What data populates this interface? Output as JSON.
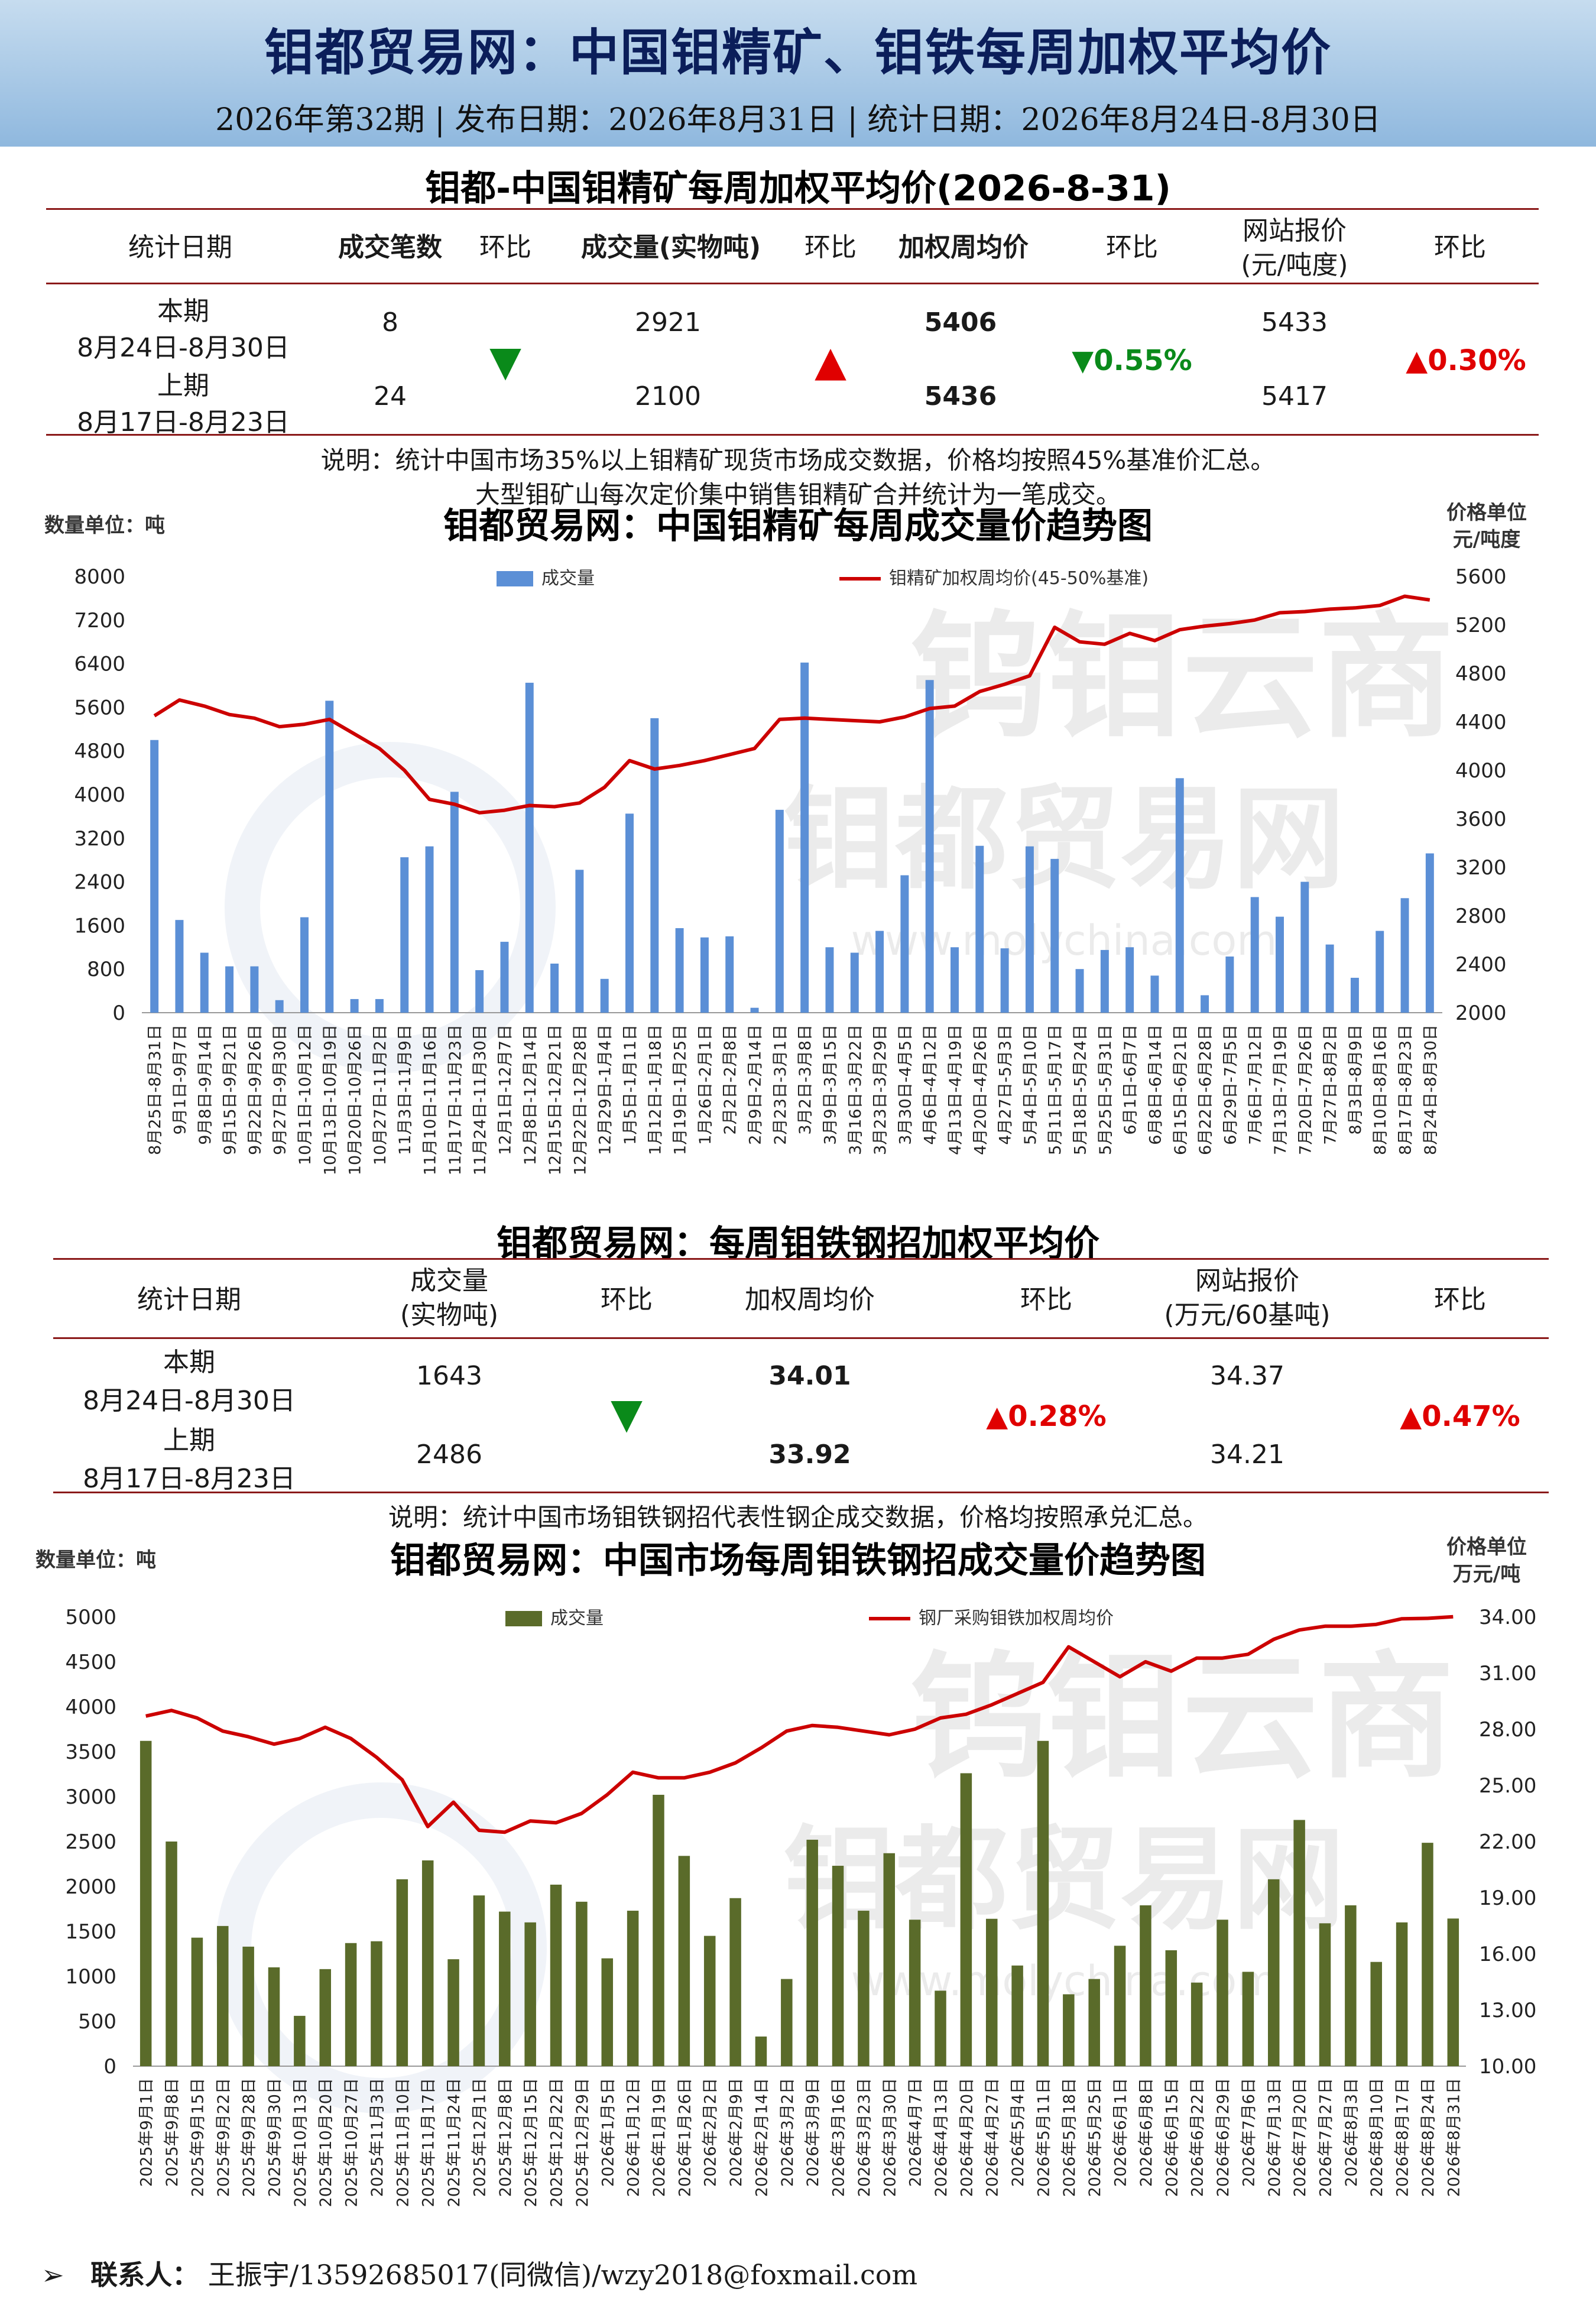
{
  "header": {
    "title": "钼都贸易网：中国钼精矿、钼铁每周加权平均价",
    "subtitle": "2026年第32期 | 发布日期：2026年8月31日 | 统计日期：2026年8月24日-8月30日"
  },
  "table1": {
    "title": "钼都-中国钼精矿每周加权平均价(2026-8-31)",
    "headers": [
      "统计日期",
      "成交笔数",
      "环比",
      "成交量(实物吨)",
      "环比",
      "加权周均价",
      "环比",
      "网站报价\n(元/吨度)",
      "环比"
    ],
    "rows": [
      {
        "label": "本期",
        "date": "8月24日-8月30日",
        "count": "8",
        "volume": "2921",
        "price": "5406",
        "quote": "5433"
      },
      {
        "label": "上期",
        "date": "8月17日-8月23日",
        "count": "24",
        "volume": "2100",
        "price": "5436",
        "quote": "5417"
      }
    ],
    "count_change": "▼",
    "volume_change": "▲",
    "price_change": "▼0.55%",
    "quote_change": "▲0.30%",
    "note1": "说明：统计中国市场35%以上钼精矿现货市场成交数据，价格均按照45%基准价汇总。",
    "note2": "大型钼矿山每次定价集中销售钼精矿合并统计为一笔成交。"
  },
  "table2": {
    "title": "钼都贸易网：每周钼铁钢招加权平均价",
    "headers": [
      "统计日期",
      "成交量\n(实物吨)",
      "环比",
      "加权周均价",
      "环比",
      "网站报价\n(万元/60基吨)",
      "环比"
    ],
    "rows": [
      {
        "label": "本期",
        "date": "8月24日-8月30日",
        "volume": "1643",
        "price": "34.01",
        "quote": "34.37"
      },
      {
        "label": "上期",
        "date": "8月17日-8月23日",
        "volume": "2486",
        "price": "33.92",
        "quote": "34.21"
      }
    ],
    "volume_change": "▼",
    "price_change": "▲0.28%",
    "quote_change": "▲0.47%",
    "note": "说明：统计中国市场钼铁钢招代表性钢企成交数据，价格均按照承兑汇总。"
  },
  "watermark": {
    "line1": "钨钼云商",
    "line2": "钼都贸易网",
    "line3": "www.molychina.com"
  },
  "chart_data": [
    {
      "type": "bar",
      "title": "钼都贸易网：中国钼精矿每周成交量价趋势图",
      "left_unit": "数量单位：吨",
      "right_unit_1": "价格单位",
      "right_unit_2": "元/吨度",
      "ylim": [
        0,
        8000
      ],
      "y2lim": [
        2000,
        5600
      ],
      "yticks": [
        0,
        800,
        1600,
        2400,
        3200,
        4000,
        4800,
        5600,
        6400,
        7200,
        8000
      ],
      "y2ticks": [
        2000,
        2400,
        2800,
        3200,
        3600,
        4000,
        4400,
        4800,
        5200,
        5600
      ],
      "legend": {
        "bar": "成交量",
        "line": "钼精矿加权周均价(45-50%基准)"
      },
      "categories": [
        "8月25日-8月31日",
        "9月1日-9月7日",
        "9月8日-9月14日",
        "9月15日-9月21日",
        "9月22日-9月26日",
        "9月27日-9月30日",
        "10月1日-10月12日",
        "10月13日-10月19日",
        "10月20日-10月26日",
        "10月27日-11月2日",
        "11月3日-11月9日",
        "11月10日-11月16日",
        "11月17日-11月23日",
        "11月24日-11月30日",
        "12月1日-12月7日",
        "12月8日-12月14日",
        "12月15日-12月21日",
        "12月22日-12月28日",
        "12月29日-1月4日",
        "1月5日-1月11日",
        "1月12日-1月18日",
        "1月19日-1月25日",
        "1月26日-2月1日",
        "2月2日-2月8日",
        "2月9日-2月14日",
        "2月23日-3月1日",
        "3月2日-3月8日",
        "3月9日-3月15日",
        "3月16日-3月22日",
        "3月23日-3月29日",
        "3月30日-4月5日",
        "4月6日-4月12日",
        "4月13日-4月19日",
        "4月20日-4月26日",
        "4月27日-5月3日",
        "5月4日-5月10日",
        "5月11日-5月17日",
        "5月18日-5月24日",
        "5月25日-5月31日",
        "6月1日-6月7日",
        "6月8日-6月14日",
        "6月15日-6月21日",
        "6月22日-6月28日",
        "6月29日-7月5日",
        "7月6日-7月12日",
        "7月13日-7月19日",
        "7月20日-7月26日",
        "7月27日-8月2日",
        "8月3日-8月9日",
        "8月10日-8月16日",
        "8月17日-8月23日",
        "8月24日-8月30日"
      ],
      "series": [
        {
          "name": "成交量",
          "kind": "bar",
          "color": "#5b8fd6",
          "values": [
            5000,
            1700,
            1100,
            850,
            850,
            230,
            1750,
            5720,
            250,
            250,
            2850,
            3050,
            4050,
            780,
            1300,
            6050,
            900,
            2620,
            620,
            3650,
            5400,
            1550,
            1380,
            1400,
            90,
            3720,
            6420,
            1200,
            1100,
            1500,
            2520,
            6100,
            1200,
            3060,
            1180,
            3050,
            2820,
            800,
            1150,
            1200,
            680,
            4300,
            320,
            1030,
            2120,
            1760,
            2400,
            1250,
            640,
            1500,
            2100,
            2921
          ]
        },
        {
          "name": "钼精矿加权周均价(45-50%基准)",
          "kind": "line",
          "color": "#cc0000",
          "values": [
            4450,
            4580,
            4530,
            4460,
            4430,
            4360,
            4380,
            4420,
            4300,
            4180,
            4000,
            3760,
            3720,
            3650,
            3670,
            3710,
            3700,
            3730,
            3860,
            4080,
            4010,
            4040,
            4080,
            4130,
            4180,
            4420,
            4430,
            4420,
            4410,
            4400,
            4440,
            4510,
            4530,
            4650,
            4710,
            4780,
            5180,
            5060,
            5040,
            5130,
            5070,
            5160,
            5190,
            5210,
            5240,
            5300,
            5310,
            5330,
            5340,
            5360,
            5436,
            5406
          ]
        }
      ]
    },
    {
      "type": "bar",
      "title": "钼都贸易网：中国市场每周钼铁钢招成交量价趋势图",
      "left_unit": "数量单位：吨",
      "right_unit_1": "价格单位",
      "right_unit_2": "万元/吨",
      "ylim": [
        0,
        5000
      ],
      "y2lim": [
        10,
        34
      ],
      "yticks": [
        0,
        500,
        1000,
        1500,
        2000,
        2500,
        3000,
        3500,
        4000,
        4500,
        5000
      ],
      "y2ticks": [
        "10.00",
        "13.00",
        "16.00",
        "19.00",
        "22.00",
        "25.00",
        "28.00",
        "31.00",
        "34.00"
      ],
      "legend": {
        "bar": "成交量",
        "line": "钢厂采购钼铁加权周均价"
      },
      "categories": [
        "2025年9月1日",
        "2025年9月8日",
        "2025年9月15日",
        "2025年9月22日",
        "2025年9月28日",
        "2025年9月30日",
        "2025年10月13日",
        "2025年10月20日",
        "2025年10月27日",
        "2025年11月3日",
        "2025年11月10日",
        "2025年11月17日",
        "2025年11月24日",
        "2025年12月1日",
        "2025年12月8日",
        "2025年12月15日",
        "2025年12月22日",
        "2025年12月29日",
        "2026年1月5日",
        "2026年1月12日",
        "2026年1月19日",
        "2026年1月26日",
        "2026年2月2日",
        "2026年2月9日",
        "2026年2月14日",
        "2026年3月2日",
        "2026年3月9日",
        "2026年3月16日",
        "2026年3月23日",
        "2026年3月30日",
        "2026年4月7日",
        "2026年4月13日",
        "2026年4月20日",
        "2026年4月27日",
        "2026年5月4日",
        "2026年5月11日",
        "2026年5月18日",
        "2026年5月25日",
        "2026年6月1日",
        "2026年6月8日",
        "2026年6月15日",
        "2026年6月22日",
        "2026年6月29日",
        "2026年7月6日",
        "2026年7月13日",
        "2026年7月20日",
        "2026年7月27日",
        "2026年8月3日",
        "2026年8月10日",
        "2026年8月17日",
        "2026年8月24日",
        "2026年8月31日"
      ],
      "series": [
        {
          "name": "成交量",
          "kind": "bar",
          "color": "#5a6b2a",
          "values": [
            3620,
            2500,
            1430,
            1560,
            1330,
            1100,
            560,
            1080,
            1370,
            1390,
            2080,
            2290,
            1190,
            1900,
            1720,
            1600,
            2020,
            1830,
            1200,
            1730,
            3020,
            2340,
            1450,
            1870,
            330,
            970,
            2520,
            2230,
            1730,
            2370,
            1630,
            840,
            3260,
            1640,
            1120,
            3620,
            800,
            970,
            1340,
            1790,
            1290,
            930,
            1630,
            1050,
            2080,
            2740,
            1590,
            1790,
            1160,
            1600,
            2486,
            1643
          ]
        },
        {
          "name": "钢厂采购钼铁加权周均价",
          "kind": "line",
          "color": "#cc0000",
          "values": [
            28.7,
            29.0,
            28.6,
            27.9,
            27.6,
            27.2,
            27.5,
            28.1,
            27.5,
            26.5,
            25.3,
            22.8,
            24.1,
            22.6,
            22.5,
            23.1,
            23.0,
            23.5,
            24.5,
            25.7,
            25.4,
            25.4,
            25.7,
            26.2,
            27.0,
            27.9,
            28.2,
            28.1,
            27.9,
            27.7,
            28.0,
            28.6,
            28.8,
            29.3,
            29.9,
            30.5,
            32.4,
            31.6,
            30.8,
            31.6,
            31.1,
            31.8,
            31.8,
            32.0,
            32.8,
            33.3,
            33.5,
            33.5,
            33.6,
            33.9,
            33.92,
            34.01
          ]
        }
      ]
    }
  ],
  "footer": {
    "prefix": "➢",
    "label": "联系人：",
    "value": "王振宇/13592685017(同微信)/wzy2018@foxmail.com"
  }
}
